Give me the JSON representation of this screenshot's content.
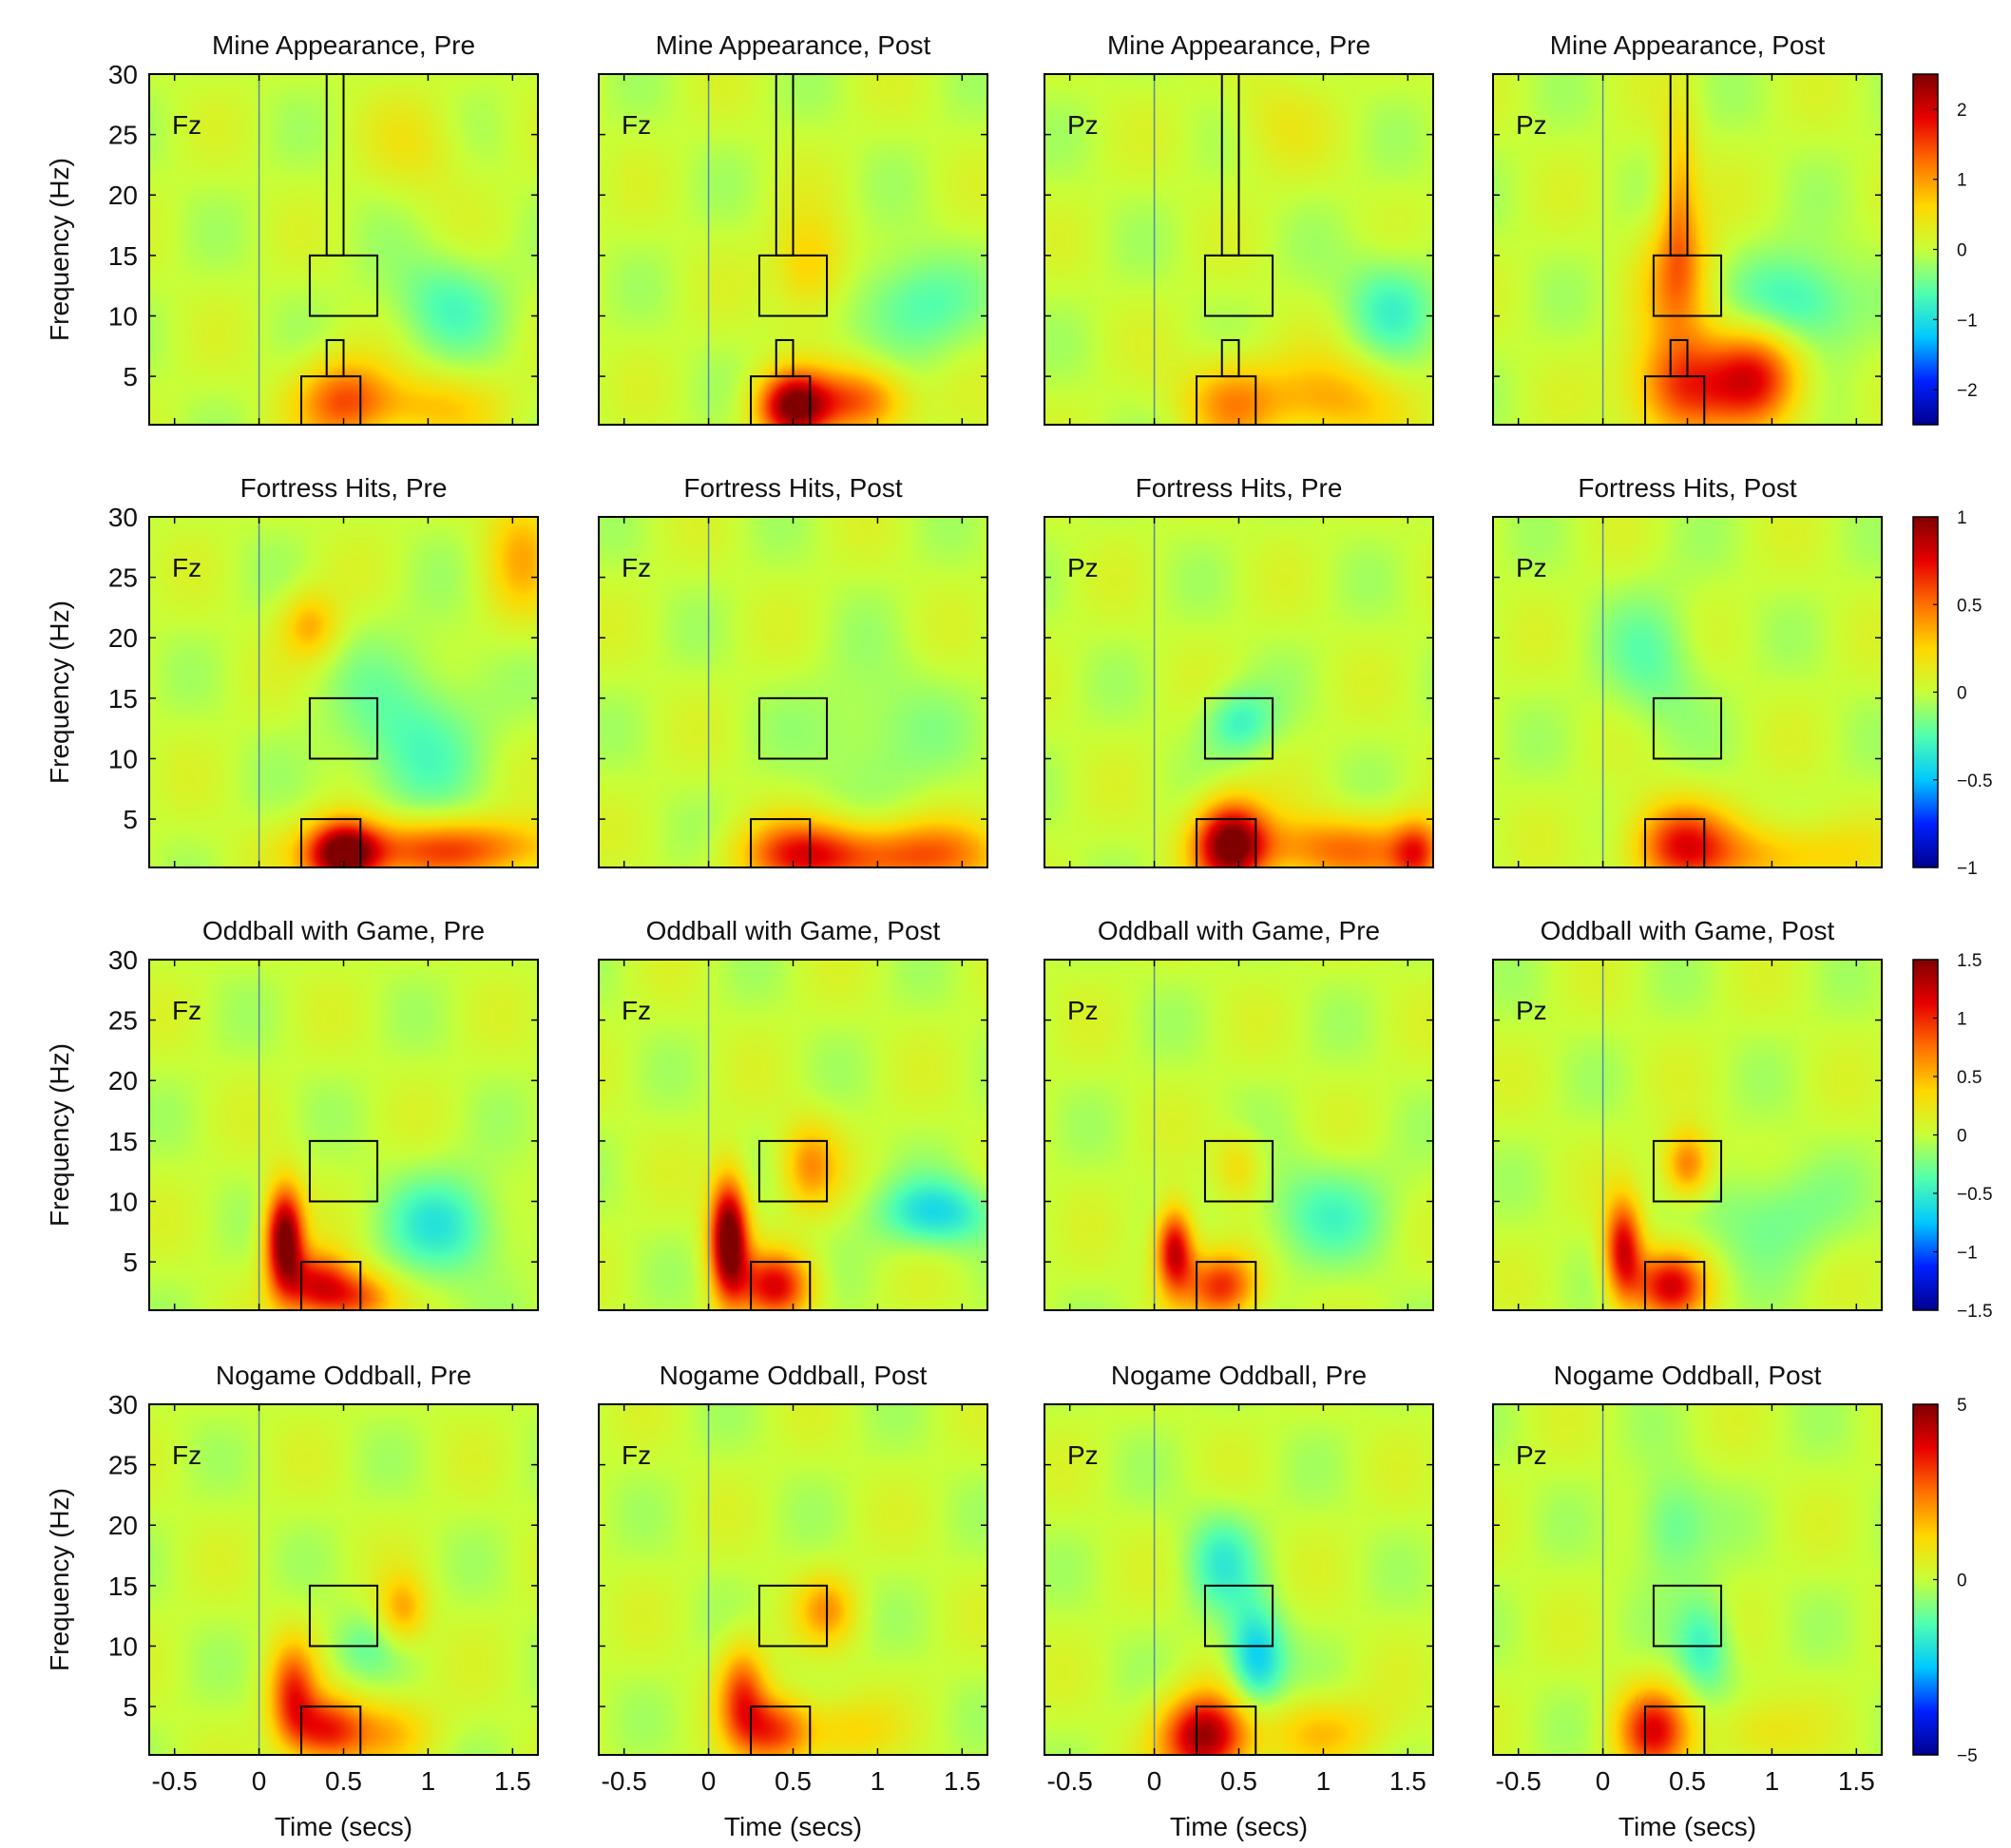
{
  "chart_data": {
    "type": "heatmap",
    "xlabel": "Time (secs)",
    "ylabel": "Frequency (Hz)",
    "xlim": [
      -0.65,
      1.65
    ],
    "ylim": [
      1,
      30
    ],
    "x_ticks": [
      -0.5,
      0,
      0.5,
      1,
      1.5
    ],
    "x_tick_labels": [
      "-0.5",
      "0",
      "0.5",
      "1",
      "1.5"
    ],
    "y_ticks": [
      5,
      10,
      15,
      20,
      25,
      30
    ],
    "y_tick_labels": [
      "5",
      "10",
      "15",
      "20",
      "25",
      "30"
    ],
    "stimulus_onset": 0,
    "colormap": [
      "#00008f",
      "#0020ff",
      "#00c8ff",
      "#50ffb0",
      "#c8ff38",
      "#ffd700",
      "#ff7000",
      "#e80000",
      "#800000"
    ],
    "rows": [
      {
        "condition": "Mine Appearance",
        "colorbar": {
          "min": -2.5,
          "max": 2.5,
          "ticks": [
            2,
            1,
            0,
            -1,
            -2
          ],
          "tick_labels": [
            "2",
            "1",
            "0",
            "−1",
            "−2"
          ]
        },
        "windows": [
          {
            "t0": 0.4,
            "t1": 0.5,
            "f0": 15,
            "f1": 30
          },
          {
            "t0": 0.3,
            "t1": 0.7,
            "f0": 10,
            "f1": 15
          },
          {
            "t0": 0.4,
            "t1": 0.5,
            "f0": 5,
            "f1": 8
          },
          {
            "t0": 0.25,
            "t1": 0.6,
            "f0": 1,
            "f1": 5
          }
        ],
        "panels": [
          {
            "title": "Mine Appearance, Pre",
            "electrode": "Fz",
            "blobs": [
              {
                "t": 0.5,
                "f": 3,
                "st": 0.2,
                "sf": 2.5,
                "a": 1.3
              },
              {
                "t": 1.0,
                "f": 2.5,
                "st": 0.3,
                "sf": 2,
                "a": 0.7
              },
              {
                "t": 1.1,
                "f": 11,
                "st": 0.25,
                "sf": 3,
                "a": -0.6
              },
              {
                "t": 0.95,
                "f": 24,
                "st": 0.2,
                "sf": 3,
                "a": 0.35
              }
            ]
          },
          {
            "title": "Mine Appearance, Post",
            "electrode": "Fz",
            "blobs": [
              {
                "t": 0.5,
                "f": 2.5,
                "st": 0.15,
                "sf": 2,
                "a": 2.4
              },
              {
                "t": 0.9,
                "f": 3,
                "st": 0.2,
                "sf": 2,
                "a": 1.4
              },
              {
                "t": 0.6,
                "f": 14,
                "st": 0.15,
                "sf": 3,
                "a": 0.8
              },
              {
                "t": 1.2,
                "f": 11,
                "st": 0.25,
                "sf": 3,
                "a": -0.7
              }
            ]
          },
          {
            "title": "Mine Appearance, Pre",
            "electrode": "Pz",
            "blobs": [
              {
                "t": 0.45,
                "f": 3,
                "st": 0.2,
                "sf": 2.5,
                "a": 1.0
              },
              {
                "t": 1.05,
                "f": 3,
                "st": 0.3,
                "sf": 2.5,
                "a": 0.9
              },
              {
                "t": 1.4,
                "f": 11,
                "st": 0.2,
                "sf": 3,
                "a": -0.7
              },
              {
                "t": 0.7,
                "f": 26,
                "st": 0.2,
                "sf": 3,
                "a": 0.3
              }
            ]
          },
          {
            "title": "Mine Appearance, Post",
            "electrode": "Pz",
            "blobs": [
              {
                "t": 0.45,
                "f": 4,
                "st": 0.2,
                "sf": 3,
                "a": 1.5
              },
              {
                "t": 0.9,
                "f": 5,
                "st": 0.2,
                "sf": 3,
                "a": 1.8
              },
              {
                "t": 0.45,
                "f": 13,
                "st": 0.15,
                "sf": 4,
                "a": 1.0
              },
              {
                "t": 0.45,
                "f": 20,
                "st": 0.08,
                "sf": 5,
                "a": 0.8
              },
              {
                "t": 1.15,
                "f": 11,
                "st": 0.25,
                "sf": 3,
                "a": -0.9
              }
            ]
          }
        ]
      },
      {
        "condition": "Fortress Hits",
        "colorbar": {
          "min": -1,
          "max": 1,
          "ticks": [
            1,
            0.5,
            0,
            -0.5,
            -1
          ],
          "tick_labels": [
            "1",
            "0.5",
            "0",
            "−0.5",
            "−1"
          ]
        },
        "windows": [
          {
            "t0": 0.3,
            "t1": 0.7,
            "f0": 10,
            "f1": 15
          },
          {
            "t0": 0.25,
            "t1": 0.6,
            "f0": 1,
            "f1": 5
          }
        ],
        "panels": [
          {
            "title": "Fortress Hits, Pre",
            "electrode": "Fz",
            "blobs": [
              {
                "t": 0.5,
                "f": 2,
                "st": 0.15,
                "sf": 2,
                "a": 1.0
              },
              {
                "t": 1.1,
                "f": 2.5,
                "st": 0.5,
                "sf": 1.8,
                "a": 0.6
              },
              {
                "t": 0.3,
                "f": 21,
                "st": 0.12,
                "sf": 2,
                "a": 0.35
              },
              {
                "t": 1.55,
                "f": 27,
                "st": 0.15,
                "sf": 4,
                "a": 0.3
              },
              {
                "t": 0.9,
                "f": 12,
                "st": 0.3,
                "sf": 5,
                "a": -0.25
              }
            ]
          },
          {
            "title": "Fortress Hits, Post",
            "electrode": "Fz",
            "blobs": [
              {
                "t": 0.55,
                "f": 2,
                "st": 0.25,
                "sf": 2,
                "a": 0.6
              },
              {
                "t": 1.2,
                "f": 2,
                "st": 0.4,
                "sf": 2,
                "a": 0.55
              },
              {
                "t": 1.0,
                "f": 12,
                "st": 0.3,
                "sf": 4,
                "a": -0.15
              }
            ]
          },
          {
            "title": "Fortress Hits, Pre",
            "electrode": "Pz",
            "blobs": [
              {
                "t": 0.45,
                "f": 3,
                "st": 0.15,
                "sf": 2.5,
                "a": 1.0
              },
              {
                "t": 1.1,
                "f": 2.5,
                "st": 0.4,
                "sf": 2,
                "a": 0.5
              },
              {
                "t": 1.55,
                "f": 2,
                "st": 0.1,
                "sf": 2,
                "a": 0.5
              },
              {
                "t": 0.5,
                "f": 13,
                "st": 0.15,
                "sf": 2,
                "a": -0.3
              }
            ]
          },
          {
            "title": "Fortress Hits, Post",
            "electrode": "Pz",
            "blobs": [
              {
                "t": 0.45,
                "f": 3,
                "st": 0.2,
                "sf": 2.5,
                "a": 0.6
              },
              {
                "t": 1.0,
                "f": 2,
                "st": 0.4,
                "sf": 2,
                "a": 0.35
              },
              {
                "t": 0.3,
                "f": 18,
                "st": 0.2,
                "sf": 4,
                "a": -0.2
              }
            ]
          }
        ]
      },
      {
        "condition": "Oddball with Game",
        "colorbar": {
          "min": -1.5,
          "max": 1.5,
          "ticks": [
            1.5,
            1,
            0.5,
            0,
            -0.5,
            -1,
            -1.5
          ],
          "tick_labels": [
            "1.5",
            "1",
            "0.5",
            "0",
            "−0.5",
            "−1",
            "−1.5"
          ]
        },
        "windows": [
          {
            "t0": 0.3,
            "t1": 0.7,
            "f0": 10,
            "f1": 15
          },
          {
            "t0": 0.25,
            "t1": 0.6,
            "f0": 1,
            "f1": 5
          }
        ],
        "panels": [
          {
            "title": "Oddball with Game, Pre",
            "electrode": "Fz",
            "blobs": [
              {
                "t": 0.15,
                "f": 7,
                "st": 0.08,
                "sf": 3,
                "a": 1.6
              },
              {
                "t": 0.35,
                "f": 3,
                "st": 0.15,
                "sf": 2,
                "a": 1.1
              },
              {
                "t": 0.6,
                "f": 2,
                "st": 0.15,
                "sf": 1.5,
                "a": 0.7
              },
              {
                "t": 1.1,
                "f": 8,
                "st": 0.25,
                "sf": 3,
                "a": -0.5
              }
            ]
          },
          {
            "title": "Oddball with Game, Post",
            "electrode": "Fz",
            "blobs": [
              {
                "t": 0.12,
                "f": 7,
                "st": 0.08,
                "sf": 3.5,
                "a": 1.7
              },
              {
                "t": 0.4,
                "f": 3,
                "st": 0.15,
                "sf": 2,
                "a": 1.1
              },
              {
                "t": 0.6,
                "f": 13,
                "st": 0.12,
                "sf": 2.5,
                "a": 0.6
              },
              {
                "t": 1.35,
                "f": 9,
                "st": 0.25,
                "sf": 2,
                "a": -0.6
              }
            ]
          },
          {
            "title": "Oddball with Game, Pre",
            "electrode": "Pz",
            "blobs": [
              {
                "t": 0.12,
                "f": 6,
                "st": 0.08,
                "sf": 2.5,
                "a": 1.3
              },
              {
                "t": 0.4,
                "f": 3,
                "st": 0.15,
                "sf": 2,
                "a": 1.0
              },
              {
                "t": 0.5,
                "f": 13,
                "st": 0.1,
                "sf": 2,
                "a": 0.35
              },
              {
                "t": 1.0,
                "f": 9,
                "st": 0.3,
                "sf": 3,
                "a": -0.35
              }
            ]
          },
          {
            "title": "Oddball with Game, Post",
            "electrode": "Pz",
            "blobs": [
              {
                "t": 0.12,
                "f": 6,
                "st": 0.08,
                "sf": 3,
                "a": 1.2
              },
              {
                "t": 0.4,
                "f": 3,
                "st": 0.15,
                "sf": 2,
                "a": 1.1
              },
              {
                "t": 0.5,
                "f": 13,
                "st": 0.1,
                "sf": 2,
                "a": 0.8
              },
              {
                "t": 1.0,
                "f": 9,
                "st": 0.3,
                "sf": 3,
                "a": -0.3
              }
            ]
          }
        ]
      },
      {
        "condition": "Nogame Oddball",
        "colorbar": {
          "min": -5,
          "max": 5,
          "ticks": [
            5,
            0,
            -5
          ],
          "tick_labels": [
            "5",
            "0",
            "−5"
          ]
        },
        "windows": [
          {
            "t0": 0.3,
            "t1": 0.7,
            "f0": 10,
            "f1": 15
          },
          {
            "t0": 0.25,
            "t1": 0.6,
            "f0": 1,
            "f1": 5
          }
        ],
        "panels": [
          {
            "title": "Nogame Oddball, Pre",
            "electrode": "Fz",
            "blobs": [
              {
                "t": 0.2,
                "f": 6,
                "st": 0.1,
                "sf": 3,
                "a": 3.0
              },
              {
                "t": 0.4,
                "f": 3,
                "st": 0.15,
                "sf": 2,
                "a": 3.2
              },
              {
                "t": 0.85,
                "f": 13,
                "st": 0.1,
                "sf": 2,
                "a": 1.8
              },
              {
                "t": 0.75,
                "f": 3,
                "st": 0.2,
                "sf": 2,
                "a": 1.5
              },
              {
                "t": 0.6,
                "f": 10,
                "st": 0.15,
                "sf": 2,
                "a": -0.8
              }
            ]
          },
          {
            "title": "Nogame Oddball, Post",
            "electrode": "Fz",
            "blobs": [
              {
                "t": 0.2,
                "f": 6,
                "st": 0.1,
                "sf": 3,
                "a": 2.8
              },
              {
                "t": 0.4,
                "f": 3,
                "st": 0.15,
                "sf": 2,
                "a": 3.0
              },
              {
                "t": 0.7,
                "f": 13,
                "st": 0.12,
                "sf": 2,
                "a": 1.8
              },
              {
                "t": 0.8,
                "f": 3,
                "st": 0.2,
                "sf": 2,
                "a": 1.2
              }
            ]
          },
          {
            "title": "Nogame Oddball, Pre",
            "electrode": "Pz",
            "blobs": [
              {
                "t": 0.3,
                "f": 2.5,
                "st": 0.18,
                "sf": 2.5,
                "a": 4.8
              },
              {
                "t": 0.6,
                "f": 9,
                "st": 0.12,
                "sf": 3,
                "a": -2.5
              },
              {
                "t": 0.4,
                "f": 17,
                "st": 0.15,
                "sf": 3,
                "a": -1.4
              },
              {
                "t": 1.0,
                "f": 3,
                "st": 0.25,
                "sf": 2,
                "a": 1.5
              }
            ]
          },
          {
            "title": "Nogame Oddball, Post",
            "electrode": "Pz",
            "blobs": [
              {
                "t": 0.3,
                "f": 3,
                "st": 0.15,
                "sf": 2.5,
                "a": 3.5
              },
              {
                "t": 0.6,
                "f": 10,
                "st": 0.12,
                "sf": 3,
                "a": -1.6
              },
              {
                "t": 0.4,
                "f": 20,
                "st": 0.15,
                "sf": 3,
                "a": -1.2
              },
              {
                "t": 0.9,
                "f": 3,
                "st": 0.2,
                "sf": 2,
                "a": 1.0
              }
            ]
          }
        ]
      }
    ]
  }
}
